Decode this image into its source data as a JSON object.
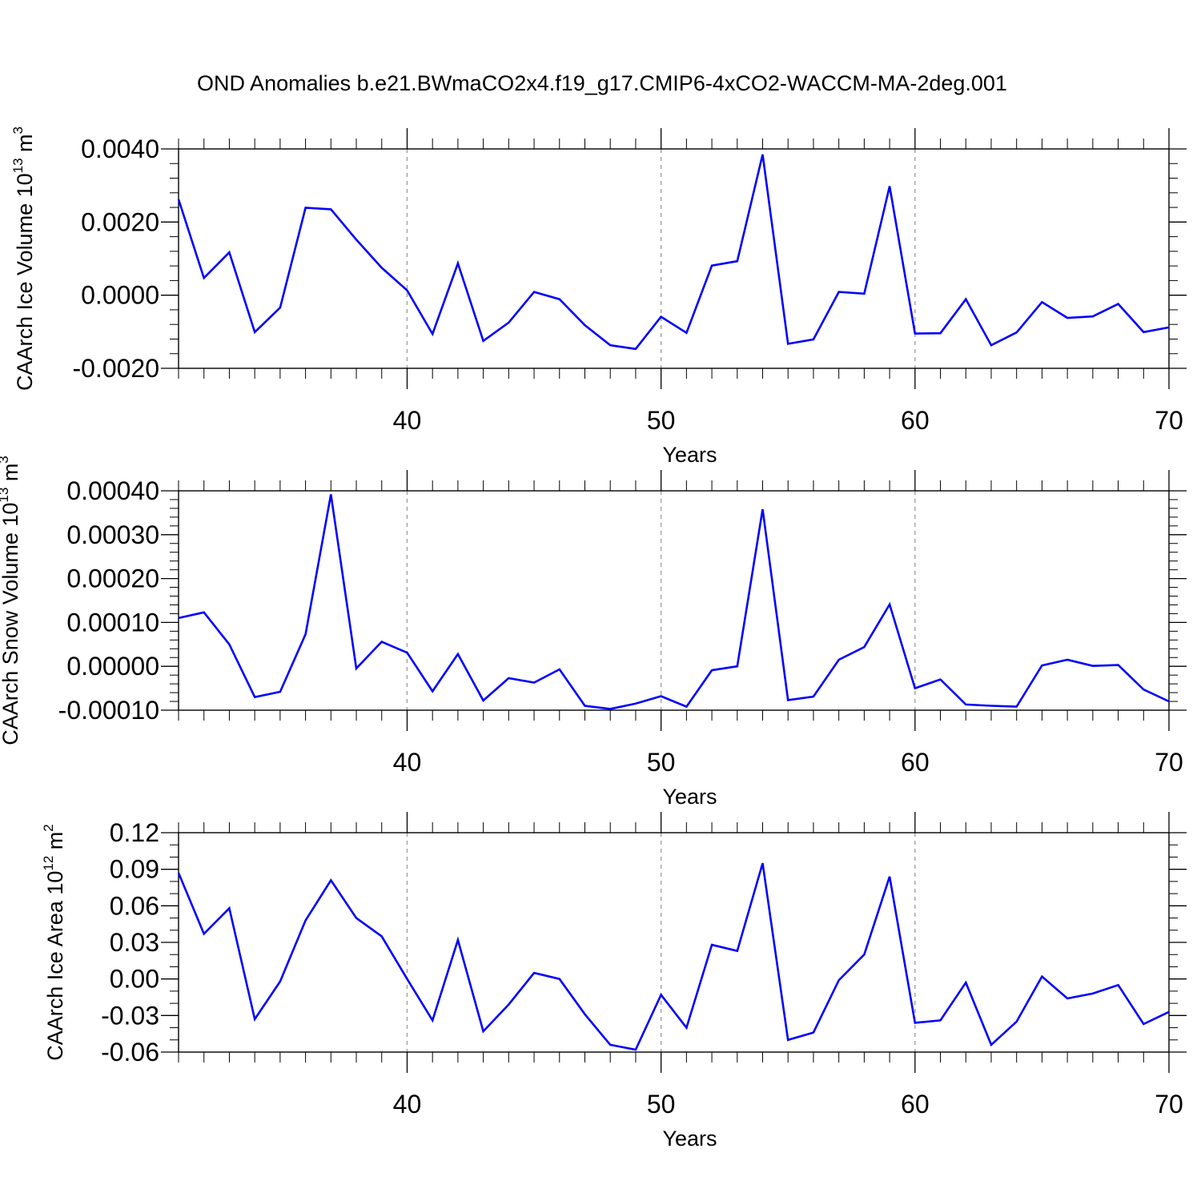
{
  "title": "OND Anomalies b.e21.BWmaCO2x4.f19_g17.CMIP6-4xCO2-WACCM-MA-2deg.001",
  "colors": {
    "line": "#0000ff",
    "axis": "#000000",
    "grid": "#a0a0a0"
  },
  "chart_data": [
    {
      "type": "line",
      "ylabel": "CAArch Ice Volume 10",
      "ylabel_exp": "13",
      "ylabel_unit": " m",
      "ylabel_unit_exp": "3",
      "xlabel": "Years",
      "xlim": [
        31,
        70
      ],
      "ylim": [
        -0.002,
        0.004
      ],
      "yticks": [
        -0.002,
        0.0,
        0.002,
        0.004
      ],
      "ytick_labels": [
        "-0.0020",
        "0.0000",
        "0.0020",
        "0.0040"
      ],
      "xticks": [
        40,
        50,
        60,
        70
      ],
      "xtick_labels": [
        "40",
        "50",
        "60",
        "70"
      ],
      "vlines": [
        40,
        50,
        60
      ],
      "x": [
        31,
        32,
        33,
        34,
        35,
        36,
        37,
        38,
        39,
        40,
        41,
        42,
        43,
        44,
        45,
        46,
        47,
        48,
        49,
        50,
        51,
        52,
        53,
        54,
        55,
        56,
        57,
        58,
        59,
        60,
        61,
        62,
        63,
        64,
        65,
        66,
        67,
        68,
        69,
        70
      ],
      "series": [
        {
          "name": "CAArch Ice Volume",
          "values": [
            0.00262,
            0.00047,
            0.00117,
            -0.00101,
            -0.00034,
            0.00239,
            0.00235,
            0.00152,
            0.00075,
            0.00013,
            -0.00106,
            0.00087,
            -0.00125,
            -0.00075,
            9e-05,
            -0.00011,
            -0.00082,
            -0.00137,
            -0.00147,
            -0.00059,
            -0.00103,
            0.00081,
            0.00093,
            0.00385,
            -0.00133,
            -0.00121,
            9e-05,
            4e-05,
            0.00298,
            -0.00105,
            -0.00104,
            -0.00011,
            -0.00137,
            -0.00102,
            -0.00019,
            -0.00062,
            -0.00058,
            -0.00024,
            -0.00101,
            -0.00088
          ]
        }
      ]
    },
    {
      "type": "line",
      "ylabel": "CAArch Snow Volume 10",
      "ylabel_exp": "13",
      "ylabel_unit": " m",
      "ylabel_unit_exp": "3",
      "xlabel": "Years",
      "xlim": [
        31,
        70
      ],
      "ylim": [
        -0.0001,
        0.0004
      ],
      "yticks": [
        -0.0001,
        0.0,
        0.0001,
        0.0002,
        0.0003,
        0.0004
      ],
      "ytick_labels": [
        "-0.00010",
        "0.00000",
        "0.00010",
        "0.00020",
        "0.00030",
        "0.00040"
      ],
      "xticks": [
        40,
        50,
        60,
        70
      ],
      "xtick_labels": [
        "40",
        "50",
        "60",
        "70"
      ],
      "vlines": [
        40,
        50,
        60
      ],
      "x": [
        31,
        32,
        33,
        34,
        35,
        36,
        37,
        38,
        39,
        40,
        41,
        42,
        43,
        44,
        45,
        46,
        47,
        48,
        49,
        50,
        51,
        52,
        53,
        54,
        55,
        56,
        57,
        58,
        59,
        60,
        61,
        62,
        63,
        64,
        65,
        66,
        67,
        68,
        69,
        70
      ],
      "series": [
        {
          "name": "CAArch Snow Volume",
          "values": [
            0.00011,
            0.000123,
            5e-05,
            -7e-05,
            -5.8e-05,
            7.3e-05,
            0.000392,
            -5e-06,
            5.6e-05,
            3.1e-05,
            -5.7e-05,
            2.8e-05,
            -7.8e-05,
            -2.7e-05,
            -3.7e-05,
            -7e-06,
            -9e-05,
            -9.7e-05,
            -8.5e-05,
            -6.8e-05,
            -9.2e-05,
            -9e-06,
            0.0,
            0.000358,
            -7.7e-05,
            -6.9e-05,
            1.5e-05,
            4.4e-05,
            0.000141,
            -5e-05,
            -3e-05,
            -8.7e-05,
            -9e-05,
            -9.2e-05,
            2e-06,
            1.5e-05,
            1e-06,
            3e-06,
            -5.3e-05,
            -8e-05
          ]
        }
      ]
    },
    {
      "type": "line",
      "ylabel": "CAArch Ice Area 10",
      "ylabel_exp": "12",
      "ylabel_unit": " m",
      "ylabel_unit_exp": "2",
      "xlabel": "Years",
      "xlim": [
        31,
        70
      ],
      "ylim": [
        -0.06,
        0.12
      ],
      "yticks": [
        -0.06,
        -0.03,
        0.0,
        0.03,
        0.06,
        0.09,
        0.12
      ],
      "ytick_labels": [
        "-0.06",
        "-0.03",
        "0.00",
        "0.03",
        "0.06",
        "0.09",
        "0.12"
      ],
      "xticks": [
        40,
        50,
        60,
        70
      ],
      "xtick_labels": [
        "40",
        "50",
        "60",
        "70"
      ],
      "vlines": [
        40,
        50,
        60
      ],
      "x": [
        31,
        32,
        33,
        34,
        35,
        36,
        37,
        38,
        39,
        40,
        41,
        42,
        43,
        44,
        45,
        46,
        47,
        48,
        49,
        50,
        51,
        52,
        53,
        54,
        55,
        56,
        57,
        58,
        59,
        60,
        61,
        62,
        63,
        64,
        65,
        66,
        67,
        68,
        69,
        70
      ],
      "series": [
        {
          "name": "CAArch Ice Area",
          "values": [
            0.087,
            0.037,
            0.058,
            -0.033,
            -0.002,
            0.048,
            0.081,
            0.05,
            0.035,
            0.0,
            -0.034,
            0.032,
            -0.043,
            -0.021,
            0.005,
            0.0,
            -0.029,
            -0.054,
            -0.058,
            -0.013,
            -0.04,
            0.028,
            0.023,
            0.095,
            -0.05,
            -0.044,
            -0.001,
            0.02,
            0.084,
            -0.036,
            -0.034,
            -0.003,
            -0.054,
            -0.035,
            0.002,
            -0.016,
            -0.012,
            -0.005,
            -0.037,
            -0.027
          ]
        }
      ]
    }
  ]
}
